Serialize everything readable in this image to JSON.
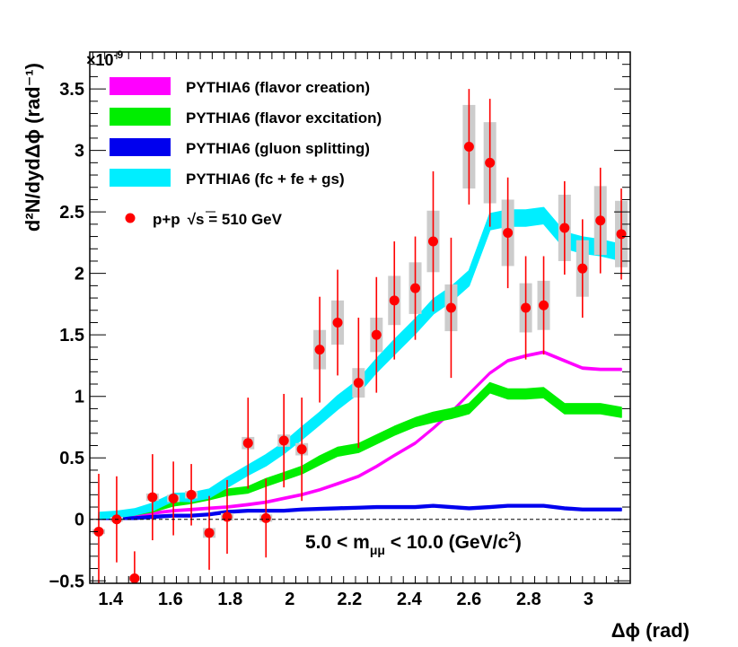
{
  "chart_data": {
    "type": "line",
    "title": "",
    "xlabel": "Δϕ (rad)",
    "ylabel": "d²N/dydΔϕ (rad⁻¹)",
    "y_multiplier": "×10",
    "y_multiplier_exponent": "-9",
    "xlim": [
      1.33,
      3.14
    ],
    "ylim": [
      -0.52,
      3.8
    ],
    "x_ticks": [
      1.4,
      1.6,
      1.8,
      2.0,
      2.2,
      2.4,
      2.6,
      2.8,
      3.0
    ],
    "x_tick_labels": [
      "1.4",
      "1.6",
      "1.8",
      "2",
      "2.2",
      "2.4",
      "2.6",
      "2.8",
      "3"
    ],
    "y_ticks": [
      -0.5,
      0,
      0.5,
      1,
      1.5,
      2,
      2.5,
      3,
      3.5
    ],
    "y_tick_labels": [
      "−0.5",
      "0",
      "0.5",
      "1",
      "1.5",
      "2",
      "2.5",
      "3",
      "3.5"
    ],
    "legend_position": "top-left",
    "annotation": {
      "prefix": "5.0 < m",
      "subscript": "μμ",
      "suffix": " < 10.0 (GeV/c",
      "sup": "2",
      "close": ")"
    },
    "series": [
      {
        "name": "PYTHIA6 (flavor creation)",
        "color": "#ff00ff",
        "band": true,
        "x": [
          1.36,
          1.42,
          1.48,
          1.54,
          1.61,
          1.67,
          1.73,
          1.79,
          1.86,
          1.92,
          1.98,
          2.04,
          2.1,
          2.16,
          2.23,
          2.29,
          2.35,
          2.42,
          2.48,
          2.54,
          2.6,
          2.67,
          2.73,
          2.79,
          2.85,
          2.92,
          2.98,
          3.04,
          3.11
        ],
        "y": [
          0.01,
          0.02,
          0.03,
          0.05,
          0.07,
          0.08,
          0.09,
          0.1,
          0.12,
          0.14,
          0.17,
          0.2,
          0.24,
          0.29,
          0.35,
          0.43,
          0.52,
          0.62,
          0.74,
          0.87,
          1.02,
          1.19,
          1.29,
          1.33,
          1.36,
          1.29,
          1.23,
          1.22,
          1.22
        ],
        "widths": [
          0.016,
          0.016,
          0.016,
          0.016,
          0.016,
          0.016,
          0.016,
          0.016,
          0.016,
          0.016,
          0.016,
          0.016,
          0.016,
          0.016,
          0.016,
          0.016,
          0.016,
          0.016,
          0.016,
          0.016,
          0.016,
          0.016,
          0.016,
          0.016,
          0.016,
          0.016,
          0.016,
          0.016,
          0.016
        ]
      },
      {
        "name": "PYTHIA6 (flavor excitation)",
        "color": "#00ee00",
        "band": true,
        "x": [
          1.36,
          1.42,
          1.48,
          1.54,
          1.61,
          1.67,
          1.73,
          1.79,
          1.86,
          1.92,
          1.98,
          2.04,
          2.1,
          2.16,
          2.23,
          2.29,
          2.35,
          2.42,
          2.48,
          2.54,
          2.6,
          2.67,
          2.73,
          2.79,
          2.85,
          2.92,
          2.98,
          3.04,
          3.11
        ],
        "y": [
          0.02,
          0.03,
          0.05,
          0.08,
          0.13,
          0.15,
          0.18,
          0.22,
          0.24,
          0.3,
          0.35,
          0.4,
          0.48,
          0.55,
          0.58,
          0.65,
          0.72,
          0.79,
          0.83,
          0.86,
          0.9,
          1.07,
          1.02,
          1.02,
          1.03,
          0.9,
          0.9,
          0.9,
          0.87
        ],
        "widths": [
          0.03,
          0.03,
          0.03,
          0.04,
          0.04,
          0.04,
          0.04,
          0.05,
          0.05,
          0.06,
          0.06,
          0.06,
          0.07,
          0.07,
          0.07,
          0.07,
          0.07,
          0.07,
          0.08,
          0.08,
          0.08,
          0.08,
          0.08,
          0.08,
          0.08,
          0.08,
          0.08,
          0.08,
          0.08
        ]
      },
      {
        "name": "PYTHIA6 (gluon splitting)",
        "color": "#0000ee",
        "band": true,
        "x": [
          1.36,
          1.42,
          1.48,
          1.54,
          1.61,
          1.67,
          1.73,
          1.79,
          1.86,
          1.92,
          1.98,
          2.04,
          2.1,
          2.16,
          2.23,
          2.29,
          2.35,
          2.42,
          2.48,
          2.54,
          2.6,
          2.67,
          2.73,
          2.79,
          2.85,
          2.92,
          2.98,
          3.04,
          3.11
        ],
        "y": [
          0.01,
          0.01,
          0.01,
          0.02,
          0.03,
          0.03,
          0.04,
          0.06,
          0.07,
          0.07,
          0.07,
          0.08,
          0.085,
          0.09,
          0.095,
          0.1,
          0.1,
          0.1,
          0.11,
          0.1,
          0.09,
          0.1,
          0.11,
          0.11,
          0.11,
          0.09,
          0.08,
          0.08,
          0.08
        ],
        "widths": [
          0.02,
          0.02,
          0.02,
          0.02,
          0.02,
          0.02,
          0.02,
          0.02,
          0.02,
          0.02,
          0.02,
          0.02,
          0.02,
          0.02,
          0.02,
          0.02,
          0.02,
          0.02,
          0.02,
          0.02,
          0.02,
          0.02,
          0.02,
          0.02,
          0.02,
          0.02,
          0.02,
          0.02,
          0.02
        ]
      },
      {
        "name": "PYTHIA6 (fc + fe + gs)",
        "color": "#00eeff",
        "band": true,
        "x": [
          1.36,
          1.42,
          1.48,
          1.54,
          1.61,
          1.67,
          1.73,
          1.79,
          1.86,
          1.92,
          1.98,
          2.04,
          2.1,
          2.16,
          2.23,
          2.29,
          2.35,
          2.42,
          2.48,
          2.54,
          2.6,
          2.67,
          2.73,
          2.79,
          2.85,
          2.92,
          2.98,
          3.04,
          3.11
        ],
        "y": [
          0.03,
          0.04,
          0.06,
          0.1,
          0.18,
          0.18,
          0.21,
          0.3,
          0.4,
          0.48,
          0.58,
          0.7,
          0.82,
          0.95,
          1.08,
          1.25,
          1.4,
          1.57,
          1.73,
          1.83,
          1.96,
          2.42,
          2.45,
          2.45,
          2.47,
          2.27,
          2.23,
          2.21,
          2.17
        ],
        "widths": [
          0.05,
          0.05,
          0.05,
          0.06,
          0.06,
          0.07,
          0.07,
          0.08,
          0.08,
          0.09,
          0.09,
          0.1,
          0.1,
          0.11,
          0.11,
          0.11,
          0.12,
          0.12,
          0.12,
          0.12,
          0.12,
          0.13,
          0.13,
          0.13,
          0.13,
          0.13,
          0.13,
          0.13,
          0.13
        ]
      }
    ],
    "data_series": {
      "name": "p+p  √s = 510 GeV",
      "label_pp": "p+p",
      "label_sqrt": "√",
      "label_rest": "s = 510 GeV",
      "color": "#ff0000",
      "x": [
        1.36,
        1.42,
        1.48,
        1.54,
        1.61,
        1.67,
        1.73,
        1.79,
        1.86,
        1.92,
        1.98,
        2.04,
        2.1,
        2.16,
        2.23,
        2.29,
        2.35,
        2.42,
        2.48,
        2.54,
        2.6,
        2.67,
        2.73,
        2.79,
        2.85,
        2.92,
        2.98,
        3.04,
        3.11
      ],
      "y": [
        -0.1,
        0.0,
        -0.48,
        0.18,
        0.17,
        0.2,
        -0.11,
        0.02,
        0.62,
        0.01,
        0.64,
        0.57,
        1.38,
        1.6,
        1.11,
        1.5,
        1.78,
        1.88,
        2.26,
        1.72,
        3.03,
        2.9,
        2.33,
        1.72,
        1.74,
        2.37,
        2.04,
        2.43,
        2.32
      ],
      "stat_err": [
        0.47,
        0.35,
        0.22,
        0.35,
        0.3,
        0.25,
        0.3,
        0.3,
        0.37,
        0.32,
        0.38,
        0.42,
        0.43,
        0.43,
        0.53,
        0.47,
        0.48,
        0.42,
        0.57,
        0.57,
        0.47,
        0.52,
        0.45,
        0.42,
        0.4,
        0.38,
        0.4,
        0.43,
        0.37
      ],
      "sys_err": [
        0.02,
        0.02,
        0.02,
        0.03,
        0.03,
        0.03,
        0.04,
        0.03,
        0.05,
        0.03,
        0.05,
        0.05,
        0.16,
        0.18,
        0.12,
        0.14,
        0.2,
        0.21,
        0.25,
        0.19,
        0.34,
        0.33,
        0.27,
        0.2,
        0.2,
        0.27,
        0.23,
        0.28,
        0.27
      ]
    }
  }
}
